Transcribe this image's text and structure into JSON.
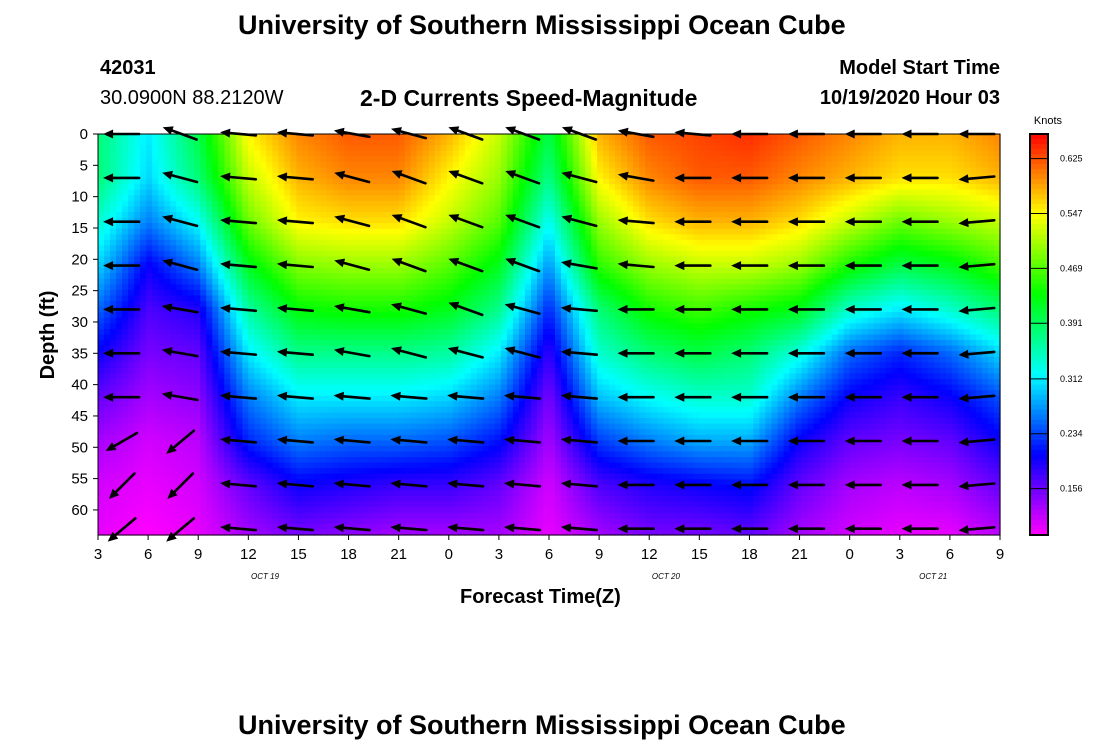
{
  "header": {
    "title": "University of Southern Mississippi Ocean Cube",
    "station_id": "42031",
    "coordinates": "30.0900N 88.2120W",
    "subtitle": "2-D Currents Speed-Magnitude",
    "model_start_label": "Model Start Time",
    "model_start_value": "10/19/2020 Hour 03"
  },
  "footer": {
    "title": "University of Southern Mississippi Ocean Cube"
  },
  "colors": {
    "scale": [
      "#ff00ff",
      "#0000ff",
      "#00ffff",
      "#00ff00",
      "#ffff00",
      "#ff0000"
    ]
  },
  "chart_data": {
    "type": "heatmap",
    "xlabel": "Forecast Time(Z)",
    "ylabel": "Depth (ft)",
    "x_hours_range": [
      3,
      57
    ],
    "ylim": [
      0,
      64
    ],
    "x_ticks": [
      "3",
      "6",
      "9",
      "12",
      "15",
      "18",
      "21",
      "0",
      "3",
      "6",
      "9",
      "12",
      "15",
      "18",
      "21",
      "0",
      "3",
      "6",
      "9"
    ],
    "y_ticks": [
      "0",
      "5",
      "10",
      "15",
      "20",
      "25",
      "30",
      "35",
      "40",
      "45",
      "50",
      "55",
      "60"
    ],
    "date_labels": [
      "OCT 19",
      "OCT 20",
      "OCT 21"
    ],
    "colorbar": {
      "title": "Knots",
      "ticks": [
        "0.625",
        "0.547",
        "0.469",
        "0.391",
        "0.312",
        "0.234",
        "0.156"
      ],
      "range": [
        0.09,
        0.66
      ]
    },
    "columns_hours": [
      3,
      6,
      9,
      12,
      15,
      18,
      21,
      24,
      27,
      30,
      33,
      36,
      39,
      42,
      45,
      48,
      51,
      54,
      57
    ],
    "speed_profiles": [
      [
        0.38,
        0.38,
        0.34,
        0.3,
        0.25,
        0.2,
        0.16,
        0.13,
        0.11,
        0.1
      ],
      [
        0.31,
        0.3,
        0.26,
        0.2,
        0.17,
        0.15,
        0.13,
        0.11,
        0.1,
        0.09
      ],
      [
        0.4,
        0.38,
        0.32,
        0.26,
        0.19,
        0.16,
        0.14,
        0.12,
        0.11,
        0.1
      ],
      [
        0.55,
        0.52,
        0.48,
        0.42,
        0.36,
        0.31,
        0.26,
        0.22,
        0.16,
        0.13
      ],
      [
        0.6,
        0.58,
        0.55,
        0.49,
        0.43,
        0.37,
        0.31,
        0.26,
        0.2,
        0.15
      ],
      [
        0.62,
        0.6,
        0.56,
        0.5,
        0.44,
        0.37,
        0.31,
        0.25,
        0.19,
        0.14
      ],
      [
        0.62,
        0.6,
        0.56,
        0.5,
        0.44,
        0.37,
        0.31,
        0.25,
        0.18,
        0.13
      ],
      [
        0.58,
        0.55,
        0.52,
        0.47,
        0.42,
        0.36,
        0.3,
        0.24,
        0.18,
        0.13
      ],
      [
        0.52,
        0.5,
        0.47,
        0.42,
        0.37,
        0.31,
        0.26,
        0.21,
        0.16,
        0.13
      ],
      [
        0.4,
        0.37,
        0.32,
        0.27,
        0.22,
        0.18,
        0.15,
        0.13,
        0.11,
        0.1
      ],
      [
        0.58,
        0.55,
        0.5,
        0.45,
        0.38,
        0.34,
        0.29,
        0.23,
        0.17,
        0.13
      ],
      [
        0.62,
        0.6,
        0.56,
        0.5,
        0.44,
        0.38,
        0.32,
        0.26,
        0.19,
        0.15
      ],
      [
        0.63,
        0.62,
        0.58,
        0.52,
        0.46,
        0.4,
        0.34,
        0.28,
        0.2,
        0.15
      ],
      [
        0.64,
        0.62,
        0.58,
        0.52,
        0.44,
        0.38,
        0.34,
        0.28,
        0.21,
        0.16
      ],
      [
        0.62,
        0.6,
        0.56,
        0.5,
        0.42,
        0.33,
        0.26,
        0.2,
        0.16,
        0.13
      ],
      [
        0.6,
        0.58,
        0.52,
        0.44,
        0.34,
        0.25,
        0.2,
        0.16,
        0.13,
        0.11
      ],
      [
        0.58,
        0.56,
        0.48,
        0.4,
        0.31,
        0.22,
        0.18,
        0.15,
        0.12,
        0.1
      ],
      [
        0.58,
        0.56,
        0.5,
        0.42,
        0.34,
        0.25,
        0.2,
        0.16,
        0.13,
        0.1
      ],
      [
        0.6,
        0.58,
        0.52,
        0.46,
        0.38,
        0.3,
        0.24,
        0.2,
        0.16,
        0.12
      ]
    ],
    "profile_depths_ft": [
      0,
      7,
      14,
      21,
      28,
      35,
      42,
      49,
      56,
      64
    ],
    "arrow_columns_hours": [
      4.5,
      8,
      11.5,
      14.9,
      18.3,
      21.7,
      25.1,
      28.5,
      31.9,
      35.3,
      38.7,
      42.1,
      45.5,
      48.9,
      52.3,
      55.7
    ],
    "arrow_depths_ft": [
      0,
      7,
      14,
      21,
      28,
      35,
      42,
      49,
      56,
      63
    ],
    "arrow_direction_deg": [
      [
        180,
        200,
        185,
        185,
        190,
        195,
        200,
        200,
        200,
        190,
        185,
        180,
        180,
        180,
        180,
        180
      ],
      [
        180,
        195,
        185,
        185,
        195,
        200,
        200,
        200,
        195,
        190,
        180,
        180,
        180,
        180,
        180,
        175
      ],
      [
        180,
        195,
        185,
        185,
        195,
        200,
        200,
        200,
        195,
        185,
        180,
        180,
        180,
        180,
        180,
        175
      ],
      [
        180,
        195,
        185,
        185,
        195,
        200,
        200,
        200,
        190,
        185,
        180,
        180,
        180,
        180,
        180,
        175
      ],
      [
        180,
        190,
        185,
        185,
        190,
        195,
        200,
        195,
        185,
        180,
        180,
        180,
        180,
        180,
        180,
        175
      ],
      [
        180,
        190,
        185,
        185,
        190,
        195,
        195,
        195,
        185,
        180,
        180,
        180,
        180,
        180,
        180,
        175
      ],
      [
        180,
        190,
        185,
        185,
        185,
        185,
        185,
        185,
        185,
        180,
        180,
        180,
        180,
        180,
        180,
        175
      ],
      [
        150,
        140,
        185,
        185,
        185,
        185,
        185,
        185,
        185,
        180,
        180,
        180,
        180,
        180,
        180,
        175
      ],
      [
        135,
        135,
        185,
        185,
        185,
        185,
        185,
        185,
        185,
        180,
        180,
        180,
        180,
        180,
        180,
        175
      ],
      [
        140,
        140,
        185,
        185,
        185,
        185,
        185,
        185,
        185,
        180,
        180,
        180,
        180,
        180,
        180,
        175
      ]
    ]
  }
}
